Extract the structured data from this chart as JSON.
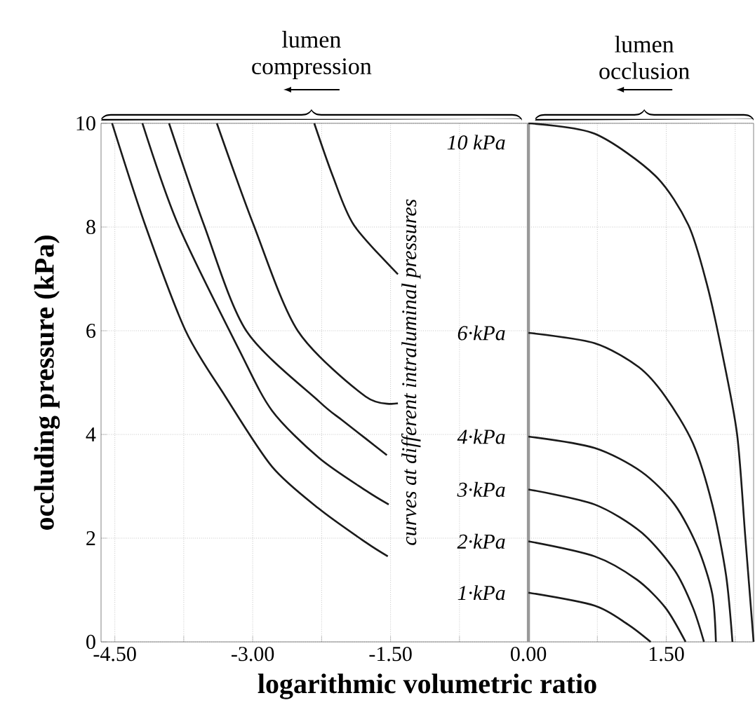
{
  "chart_data": {
    "type": "line",
    "xlabel": "logarithmic volumetric ratio",
    "ylabel": "occluding pressure (kPa)",
    "xlim": [
      -4.65,
      2.45
    ],
    "ylim": [
      0,
      10
    ],
    "xticks": [
      {
        "value": -4.5,
        "label": "-4.50"
      },
      {
        "value": -3.75,
        "label": null
      },
      {
        "value": -3,
        "label": "-3.00"
      },
      {
        "value": -2.25,
        "label": null
      },
      {
        "value": -1.5,
        "label": "-1.50"
      },
      {
        "value": -0.75,
        "label": null
      },
      {
        "value": 0,
        "label": "0.00"
      },
      {
        "value": 0.75,
        "label": null
      },
      {
        "value": 1.5,
        "label": "1.50"
      },
      {
        "value": 2.25,
        "label": null
      }
    ],
    "yticks": [
      0,
      2,
      4,
      6,
      8,
      10
    ],
    "grid": true,
    "ref_lines": [
      {
        "axis": "x",
        "value": 0,
        "color": "#999999"
      }
    ],
    "annotations": [
      "lumen compression",
      "lumen occlusion",
      "curves at different intraluminal pressures"
    ],
    "series": [
      {
        "name": "1·kPa",
        "color": "#1a1a1a",
        "x": [
          -4.53,
          -4.17,
          -3.73,
          -3.3,
          -2.79,
          -2.28,
          -1.77,
          -1.53,
          -1.0,
          0,
          0.72,
          1.08,
          1.33
        ],
        "values": [
          10,
          8.04,
          6.0,
          4.74,
          3.38,
          2.57,
          1.92,
          1.65,
          null,
          0.95,
          0.7,
          0.34,
          0
        ]
      },
      {
        "name": "2·kPa",
        "color": "#1a1a1a",
        "x": [
          -4.2,
          -3.81,
          -3.15,
          -2.79,
          -2.28,
          -1.77,
          -1.52,
          -1.0,
          0,
          0.72,
          1.18,
          1.49,
          1.71
        ],
        "values": [
          10,
          8.04,
          5.64,
          4.46,
          3.55,
          2.92,
          2.65,
          null,
          1.94,
          1.65,
          1.2,
          0.66,
          0
        ]
      },
      {
        "name": "3·kPa",
        "color": "#1a1a1a",
        "x": [
          -3.91,
          -3.53,
          -3.07,
          -2.28,
          -2.03,
          -1.77,
          -1.54,
          -1.0,
          0,
          0.72,
          1.23,
          1.59,
          1.79,
          1.91
        ],
        "values": [
          10,
          8.04,
          6.0,
          4.64,
          4.28,
          3.92,
          3.6,
          null,
          2.94,
          2.65,
          2.11,
          1.38,
          0.66,
          0
        ]
      },
      {
        "name": "4·kPa",
        "color": "#1a1a1a",
        "x": [
          -3.39,
          -2.99,
          -2.51,
          -1.77,
          -1.42,
          -1.0,
          0,
          0.72,
          1.23,
          1.59,
          1.84,
          2.0,
          2.04
        ],
        "values": [
          10,
          8.04,
          6.0,
          4.73,
          4.6,
          null,
          3.96,
          3.74,
          3.28,
          2.65,
          1.83,
          0.93,
          0
        ]
      },
      {
        "name": "6·kPa",
        "color": "#1a1a1a",
        "x": [
          -2.33,
          -2.13,
          -1.9,
          -1.42,
          -1.0,
          0,
          0.72,
          1.2,
          1.49,
          1.79,
          2.0,
          2.15,
          2.22
        ],
        "values": [
          10,
          8.99,
          8.04,
          7.09,
          null,
          5.96,
          5.76,
          5.3,
          4.73,
          3.83,
          2.65,
          1.29,
          0
        ]
      },
      {
        "name": "10 kPa",
        "color": "#1a1a1a",
        "x": [
          0,
          0.72,
          1.38,
          1.74,
          1.94,
          2.1,
          2.27,
          2.36,
          2.45
        ],
        "values": [
          10,
          9.8,
          8.99,
          8.04,
          6.91,
          5.64,
          4.01,
          2.02,
          0
        ]
      }
    ]
  }
}
